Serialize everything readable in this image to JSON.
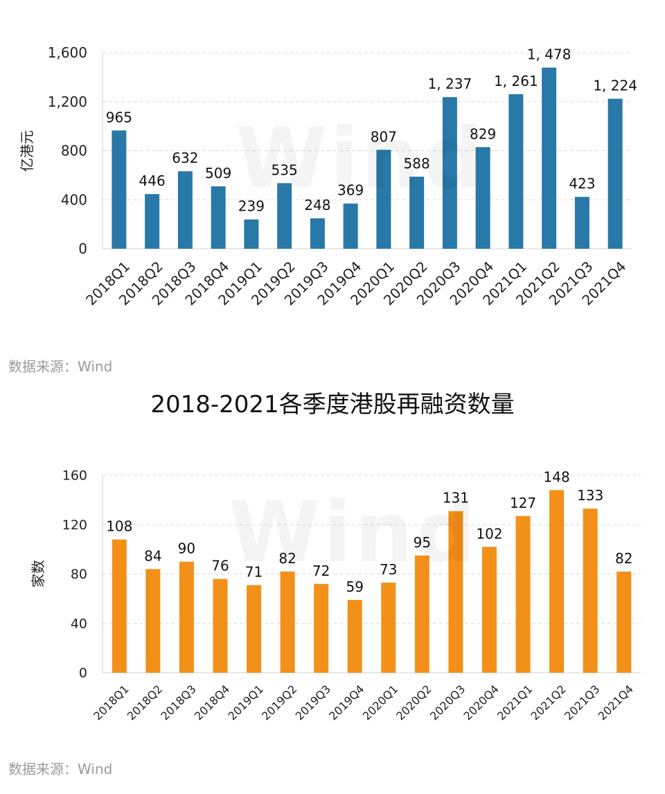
{
  "chart_data": [
    {
      "type": "bar",
      "title": "",
      "xlabel": "",
      "ylabel": "亿港元",
      "ylim": [
        0,
        1600
      ],
      "yticks": [
        "0",
        "400",
        "800",
        "1,200",
        "1,600"
      ],
      "categories": [
        "2018Q1",
        "2018Q2",
        "2018Q3",
        "2018Q4",
        "2019Q1",
        "2019Q2",
        "2019Q3",
        "2019Q4",
        "2020Q1",
        "2020Q2",
        "2020Q3",
        "2020Q4",
        "2021Q1",
        "2021Q2",
        "2021Q3",
        "2021Q4"
      ],
      "values": [
        965,
        446,
        632,
        509,
        239,
        535,
        248,
        369,
        807,
        588,
        1237,
        829,
        1261,
        1478,
        423,
        1224
      ],
      "value_labels": [
        "965",
        "446",
        "632",
        "509",
        "239",
        "535",
        "248",
        "369",
        "807",
        "588",
        "1, 237",
        "829",
        "1, 261",
        "1, 478",
        "423",
        "1, 224"
      ],
      "color": "#2878a8",
      "grid": true,
      "watermark": "Wind",
      "source": "数据来源：Wind"
    },
    {
      "type": "bar",
      "title": "2018-2021各季度港股再融资数量",
      "xlabel": "",
      "ylabel": "家数",
      "ylim": [
        0,
        160
      ],
      "yticks": [
        "0",
        "40",
        "80",
        "120",
        "160"
      ],
      "categories": [
        "2018Q1",
        "2018Q2",
        "2018Q3",
        "2018Q4",
        "2019Q1",
        "2019Q2",
        "2019Q3",
        "2019Q4",
        "2020Q1",
        "2020Q2",
        "2020Q3",
        "2020Q4",
        "2021Q1",
        "2021Q2",
        "2021Q3",
        "2021Q4"
      ],
      "values": [
        108,
        84,
        90,
        76,
        71,
        82,
        72,
        59,
        73,
        95,
        131,
        102,
        127,
        148,
        133,
        82
      ],
      "value_labels": [
        "108",
        "84",
        "90",
        "76",
        "71",
        "82",
        "72",
        "59",
        "73",
        "95",
        "131",
        "102",
        "127",
        "148",
        "133",
        "82"
      ],
      "color": "#f39019",
      "grid": true,
      "watermark": "Wind",
      "source": "数据来源：Wind"
    }
  ]
}
